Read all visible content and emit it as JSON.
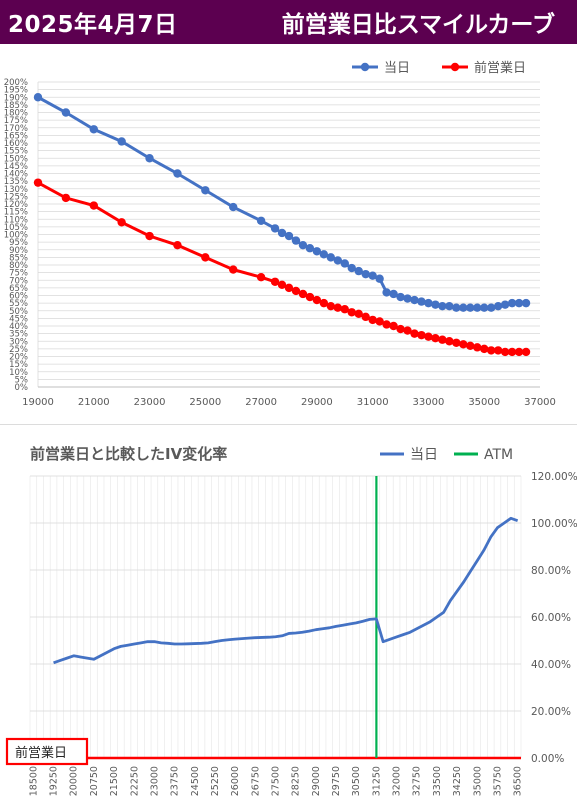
{
  "header": {
    "date": "2025年4月7日",
    "title": "前営業日比スマイルカーブ"
  },
  "colors": {
    "header_bg": "#5c0050",
    "today": "#4472c4",
    "prev": "#ff0000",
    "iv_line": "#4472c4",
    "atm": "#00b050",
    "grid": "#d9d9d9"
  },
  "chart_data": [
    {
      "type": "line",
      "title": "",
      "xlim": [
        19000,
        37000
      ],
      "xticks": [
        19000,
        21000,
        23000,
        25000,
        27000,
        29000,
        31000,
        33000,
        35000,
        37000
      ],
      "ylim": [
        0,
        200
      ],
      "ytick_step": 5,
      "ytick_format": "percent",
      "legend_position": "top-right",
      "grid": true,
      "series": [
        {
          "name": "当日",
          "color": "#4472c4",
          "x": [
            19000,
            20000,
            21000,
            22000,
            23000,
            24000,
            25000,
            26000,
            27000,
            27500,
            27750,
            28000,
            28250,
            28500,
            28750,
            29000,
            29250,
            29500,
            29750,
            30000,
            30250,
            30500,
            30750,
            31000,
            31250,
            31500,
            31750,
            32000,
            32250,
            32500,
            32750,
            33000,
            33250,
            33500,
            33750,
            34000,
            34250,
            34500,
            34750,
            35000,
            35250,
            35500,
            35750,
            36000,
            36250,
            36500
          ],
          "values": [
            190,
            180,
            169,
            161,
            150,
            140,
            129,
            118,
            109,
            104,
            101,
            99,
            96,
            93,
            91,
            89,
            87,
            85,
            83,
            81,
            78,
            76,
            74,
            73,
            71,
            62,
            61,
            59,
            58,
            57,
            56,
            55,
            54,
            53,
            53,
            52,
            52,
            52,
            52,
            52,
            52,
            53,
            54,
            55,
            55,
            55
          ]
        },
        {
          "name": "前営業日",
          "color": "#ff0000",
          "x": [
            19000,
            20000,
            21000,
            22000,
            23000,
            24000,
            25000,
            26000,
            27000,
            27500,
            27750,
            28000,
            28250,
            28500,
            28750,
            29000,
            29250,
            29500,
            29750,
            30000,
            30250,
            30500,
            30750,
            31000,
            31250,
            31500,
            31750,
            32000,
            32250,
            32500,
            32750,
            33000,
            33250,
            33500,
            33750,
            34000,
            34250,
            34500,
            34750,
            35000,
            35250,
            35500,
            35750,
            36000,
            36250,
            36500
          ],
          "values": [
            134,
            124,
            119,
            108,
            99,
            93,
            85,
            77,
            72,
            69,
            67,
            65,
            63,
            61,
            59,
            57,
            55,
            53,
            52,
            51,
            49,
            48,
            46,
            44,
            43,
            41,
            40,
            38,
            37,
            35,
            34,
            33,
            32,
            31,
            30,
            29,
            28,
            27,
            26,
            25,
            24,
            24,
            23,
            23,
            23,
            23
          ]
        }
      ]
    },
    {
      "type": "line",
      "title": "前営業日と比較したIV変化率",
      "categories": [
        "18500",
        "18750",
        "19000",
        "19250",
        "19500",
        "19750",
        "20000",
        "20250",
        "20500",
        "20750",
        "21000",
        "21250",
        "21500",
        "21750",
        "22000",
        "22250",
        "22500",
        "22750",
        "23000",
        "23250",
        "23500",
        "23750",
        "24000",
        "24250",
        "24500",
        "24750",
        "25000",
        "25250",
        "25500",
        "25750",
        "26000",
        "26250",
        "26500",
        "26750",
        "27000",
        "27250",
        "27500",
        "27750",
        "28000",
        "28250",
        "28500",
        "28750",
        "29000",
        "29250",
        "29500",
        "29750",
        "30000",
        "30250",
        "30500",
        "30750",
        "31000",
        "31250",
        "31500",
        "31750",
        "32000",
        "32250",
        "32500",
        "32750",
        "33000",
        "33250",
        "33500",
        "33750",
        "34000",
        "34250",
        "34500",
        "34750",
        "35000",
        "35250",
        "35500",
        "35750",
        "36000",
        "36250",
        "36500"
      ],
      "tick_every": 3,
      "ylim": [
        0,
        120
      ],
      "yticks": [
        "0.00%",
        "20.00%",
        "40.00%",
        "60.00%",
        "80.00%",
        "100.00%",
        "120.00%"
      ],
      "legend_position": "top-right",
      "grid": true,
      "atm_name": "ATM",
      "atm_strike": "31250",
      "baseline_label": "前営業日",
      "series": [
        {
          "name": "当日",
          "color": "#4472c4",
          "values": [
            null,
            null,
            null,
            40.5,
            41.5,
            42.5,
            43.5,
            43,
            42.5,
            42,
            43.5,
            45,
            46.5,
            47.5,
            48,
            48.5,
            49,
            49.5,
            49.5,
            49,
            48.8,
            48.5,
            48.5,
            48.6,
            48.7,
            48.8,
            49,
            49.5,
            50,
            50.3,
            50.6,
            50.8,
            51,
            51.2,
            51.3,
            51.4,
            51.6,
            52,
            53,
            53.2,
            53.5,
            54,
            54.6,
            55,
            55.4,
            56,
            56.5,
            57,
            57.5,
            58.2,
            59,
            59.2,
            49.5,
            50.5,
            51.5,
            52.5,
            53.5,
            55,
            56.5,
            58,
            60,
            62,
            67,
            71,
            75,
            79.5,
            84,
            88.5,
            94,
            98,
            100,
            102,
            101
          ]
        },
        {
          "name": "前営業日",
          "color": "#ff0000",
          "values_constant": 0
        }
      ],
      "atm": {
        "name": "ATM",
        "color": "#00b050",
        "category": "31250"
      }
    }
  ]
}
